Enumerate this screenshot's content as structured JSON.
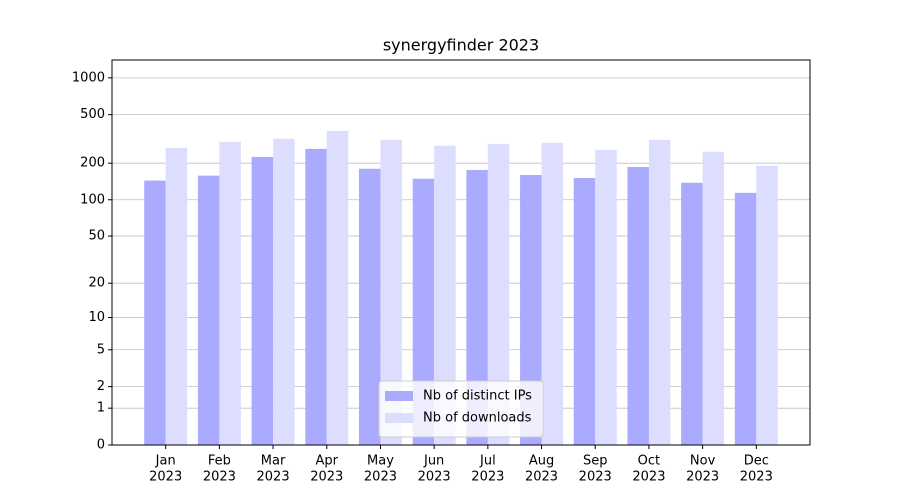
{
  "chart_data": {
    "type": "bar",
    "title": "synergyfinder 2023",
    "categories": [
      [
        "Jan",
        "2023"
      ],
      [
        "Feb",
        "2023"
      ],
      [
        "Mar",
        "2023"
      ],
      [
        "Apr",
        "2023"
      ],
      [
        "May",
        "2023"
      ],
      [
        "Jun",
        "2023"
      ],
      [
        "Jul",
        "2023"
      ],
      [
        "Aug",
        "2023"
      ],
      [
        "Sep",
        "2023"
      ],
      [
        "Oct",
        "2023"
      ],
      [
        "Nov",
        "2023"
      ],
      [
        "Dec",
        "2023"
      ]
    ],
    "series": [
      {
        "name": "Nb of distinct IPs",
        "color": "#aaaaff",
        "values": [
          144,
          158,
          225,
          262,
          180,
          149,
          176,
          160,
          151,
          186,
          138,
          114
        ]
      },
      {
        "name": "Nb of downloads",
        "color": "#ddddff",
        "values": [
          267,
          299,
          317,
          368,
          311,
          278,
          288,
          294,
          257,
          311,
          248,
          190
        ]
      }
    ],
    "yscale": "log1p",
    "ylim": [
      0,
      1400
    ],
    "yticks": [
      0,
      1,
      2,
      5,
      10,
      20,
      50,
      100,
      200,
      500,
      1000
    ],
    "grid": true,
    "legend": "lower center"
  }
}
